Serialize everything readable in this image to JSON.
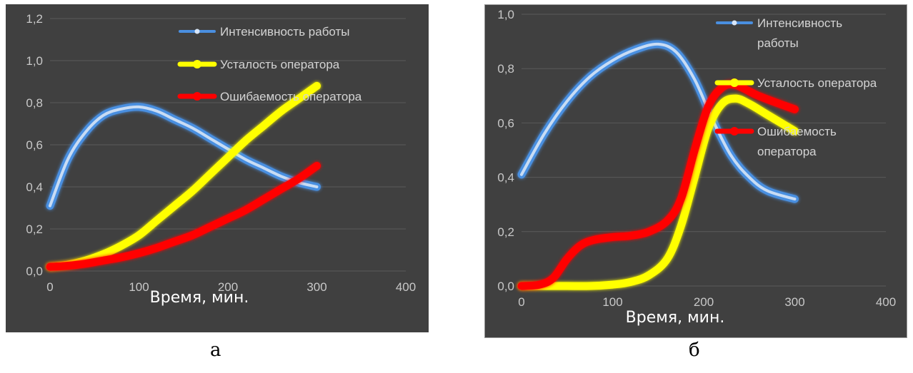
{
  "captions": {
    "a": "а",
    "b": "б"
  },
  "chart_data": [
    {
      "type": "line",
      "panel": "а",
      "xlabel": "Время, мин.",
      "ylabel": "",
      "xlim": [
        0,
        400
      ],
      "ylim": [
        0,
        1.2
      ],
      "xticks": [
        "0",
        "100",
        "200",
        "300",
        "400"
      ],
      "yticks": [
        "0,0",
        "0,2",
        "0,4",
        "0,6",
        "0,8",
        "1,0",
        "1,2"
      ],
      "grid": true,
      "legend": "top-right",
      "background": "#404040",
      "series": [
        {
          "name": "Интенсивность работы",
          "color": "#4a8fe0",
          "x": [
            0,
            20,
            40,
            60,
            80,
            100,
            120,
            140,
            160,
            180,
            200,
            220,
            240,
            260,
            280,
            300
          ],
          "y": [
            0.31,
            0.53,
            0.66,
            0.74,
            0.77,
            0.78,
            0.76,
            0.72,
            0.68,
            0.63,
            0.58,
            0.53,
            0.49,
            0.45,
            0.42,
            0.4
          ]
        },
        {
          "name": "Усталость оператора",
          "color": "#ffff00",
          "x": [
            0,
            20,
            40,
            60,
            80,
            100,
            120,
            140,
            160,
            180,
            200,
            220,
            240,
            260,
            280,
            300
          ],
          "y": [
            0.02,
            0.03,
            0.05,
            0.08,
            0.12,
            0.17,
            0.24,
            0.31,
            0.38,
            0.46,
            0.54,
            0.62,
            0.69,
            0.76,
            0.82,
            0.88
          ]
        },
        {
          "name": "Ошибаемость оператора",
          "color": "#ff0000",
          "x": [
            0,
            20,
            40,
            60,
            80,
            100,
            120,
            140,
            160,
            180,
            200,
            220,
            240,
            260,
            280,
            300
          ],
          "y": [
            0.02,
            0.025,
            0.035,
            0.05,
            0.065,
            0.085,
            0.11,
            0.14,
            0.17,
            0.21,
            0.25,
            0.29,
            0.34,
            0.39,
            0.44,
            0.5
          ]
        }
      ]
    },
    {
      "type": "line",
      "panel": "б",
      "xlabel": "Время, мин.",
      "ylabel": "",
      "xlim": [
        0,
        400
      ],
      "ylim": [
        0,
        1.0
      ],
      "xticks": [
        "0",
        "100",
        "200",
        "300",
        "400"
      ],
      "yticks": [
        "0,0",
        "0,2",
        "0,4",
        "0,6",
        "0,8",
        "1,0"
      ],
      "grid": true,
      "legend": "top-right",
      "background": "#404040",
      "series": [
        {
          "name": "Интенсивность работы",
          "legend_lines": [
            "Интенсивность",
            "работы"
          ],
          "color": "#4a8fe0",
          "x": [
            0,
            25,
            50,
            75,
            100,
            125,
            150,
            170,
            190,
            210,
            230,
            250,
            270,
            300
          ],
          "y": [
            0.41,
            0.56,
            0.68,
            0.77,
            0.83,
            0.87,
            0.89,
            0.86,
            0.76,
            0.61,
            0.48,
            0.4,
            0.35,
            0.32
          ]
        },
        {
          "name": "Усталость оператора",
          "color": "#ffff00",
          "x": [
            0,
            25,
            50,
            75,
            100,
            120,
            140,
            160,
            175,
            190,
            205,
            220,
            235,
            250,
            270,
            300
          ],
          "y": [
            0.0,
            0.0,
            0.0,
            0.0,
            0.005,
            0.015,
            0.04,
            0.1,
            0.22,
            0.4,
            0.58,
            0.67,
            0.69,
            0.67,
            0.63,
            0.57
          ]
        },
        {
          "name": "Ошибаемость оператора",
          "legend_lines": [
            "Ошибаемость",
            "оператора"
          ],
          "color": "#ff0000",
          "x": [
            0,
            20,
            35,
            50,
            65,
            80,
            100,
            120,
            140,
            160,
            175,
            190,
            205,
            220,
            235,
            260,
            300
          ],
          "y": [
            0.0,
            0.005,
            0.03,
            0.1,
            0.15,
            0.17,
            0.18,
            0.185,
            0.2,
            0.24,
            0.32,
            0.5,
            0.66,
            0.73,
            0.74,
            0.7,
            0.65
          ]
        }
      ]
    }
  ]
}
